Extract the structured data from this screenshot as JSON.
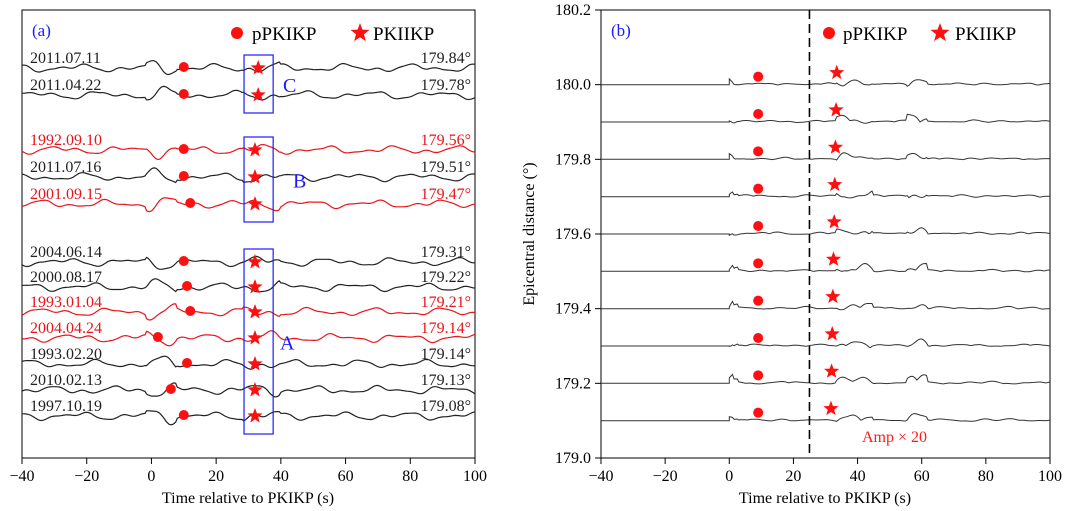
{
  "colors": {
    "red": "#e8141b",
    "black": "#222222",
    "blue": "#1a1aff",
    "red_marker": "#ff1010"
  },
  "chart_data": [
    {
      "panel": "(a)",
      "type": "line",
      "xlabel": "Time relative to PKIKP (s)",
      "xlim": [
        -40,
        100
      ],
      "xticks": [
        "−40",
        "−20",
        "0",
        "20",
        "40",
        "60",
        "80",
        "100"
      ],
      "legend": {
        "position": "top-right",
        "entries": [
          {
            "marker": "circle",
            "label": "pPKIKP"
          },
          {
            "marker": "star",
            "label": "PKIIKP"
          }
        ]
      },
      "series": [
        {
          "name": "2011.07.11",
          "distance": "179.84°",
          "color": "black",
          "ppkikp_t": 10,
          "pkiikp_t": 33
        },
        {
          "name": "2011.04.22",
          "distance": "179.78°",
          "color": "black",
          "ppkikp_t": 10,
          "pkiikp_t": 33
        },
        {
          "name": "1992.09.10",
          "distance": "179.56°",
          "color": "red",
          "ppkikp_t": 10,
          "pkiikp_t": 32
        },
        {
          "name": "2011.07.16",
          "distance": "179.51°",
          "color": "black",
          "ppkikp_t": 10,
          "pkiikp_t": 32
        },
        {
          "name": "2001.09.15",
          "distance": "179.47°",
          "color": "red",
          "ppkikp_t": 12,
          "pkiikp_t": 32
        },
        {
          "name": "2004.06.14",
          "distance": "179.31°",
          "color": "black",
          "ppkikp_t": 10,
          "pkiikp_t": 32
        },
        {
          "name": "2000.08.17",
          "distance": "179.22°",
          "color": "black",
          "ppkikp_t": 11,
          "pkiikp_t": 32
        },
        {
          "name": "1993.01.04",
          "distance": "179.21°",
          "color": "red",
          "ppkikp_t": 12,
          "pkiikp_t": 32
        },
        {
          "name": "2004.04.24",
          "distance": "179.14°",
          "color": "red",
          "ppkikp_t": 2,
          "pkiikp_t": 32
        },
        {
          "name": "1993.02.20",
          "distance": "179.14°",
          "color": "black",
          "ppkikp_t": 11,
          "pkiikp_t": 32
        },
        {
          "name": "2010.02.13",
          "distance": "179.13°",
          "color": "black",
          "ppkikp_t": 6,
          "pkiikp_t": 32
        },
        {
          "name": "1997.10.19",
          "distance": "179.08°",
          "color": "black",
          "ppkikp_t": 10,
          "pkiikp_t": 32
        }
      ],
      "boxes": [
        {
          "label": "C",
          "t_range": [
            28,
            37
          ]
        },
        {
          "label": "B",
          "t_range": [
            28,
            37
          ]
        },
        {
          "label": "A",
          "t_range": [
            28,
            37
          ]
        }
      ]
    },
    {
      "panel": "(b)",
      "type": "line",
      "xlabel": "Time relative to PKIKP (s)",
      "ylabel": "Epicentral distance (°)",
      "xlim": [
        -40,
        100
      ],
      "ylim": [
        179.0,
        180.2
      ],
      "xticks": [
        "−40",
        "−20",
        "0",
        "20",
        "40",
        "60",
        "80",
        "100"
      ],
      "yticks": [
        "179.0",
        "179.2",
        "179.4",
        "179.6",
        "179.8",
        "180.0",
        "180.2"
      ],
      "legend": {
        "position": "top-right",
        "entries": [
          {
            "marker": "circle",
            "label": "pPKIKP"
          },
          {
            "marker": "star",
            "label": "PKIIKP"
          }
        ]
      },
      "dashed_line_t": 25,
      "annotation": "Amp × 20",
      "traces": [
        {
          "distance": 180.0,
          "ppkikp_t": 9,
          "pkiikp_t": 33.5
        },
        {
          "distance": 179.9,
          "ppkikp_t": 9,
          "pkiikp_t": 33.3
        },
        {
          "distance": 179.8,
          "ppkikp_t": 9,
          "pkiikp_t": 33.1
        },
        {
          "distance": 179.7,
          "ppkikp_t": 9,
          "pkiikp_t": 32.9
        },
        {
          "distance": 179.6,
          "ppkikp_t": 9,
          "pkiikp_t": 32.7
        },
        {
          "distance": 179.5,
          "ppkikp_t": 9,
          "pkiikp_t": 32.5
        },
        {
          "distance": 179.4,
          "ppkikp_t": 9,
          "pkiikp_t": 32.3
        },
        {
          "distance": 179.3,
          "ppkikp_t": 9,
          "pkiikp_t": 32.1
        },
        {
          "distance": 179.2,
          "ppkikp_t": 9,
          "pkiikp_t": 31.9
        },
        {
          "distance": 179.1,
          "ppkikp_t": 9,
          "pkiikp_t": 31.7
        }
      ]
    }
  ]
}
